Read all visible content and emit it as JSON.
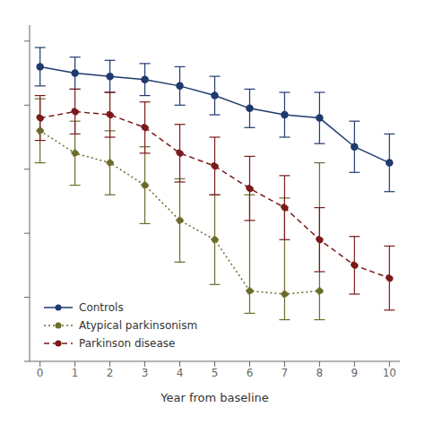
{
  "chart_data": {
    "type": "line",
    "xlabel": "Year from baseline",
    "x": [
      0,
      1,
      2,
      3,
      4,
      5,
      6,
      7,
      8,
      9,
      10
    ],
    "series": [
      {
        "name": "Controls",
        "color": "#1f3a6e",
        "line_style": "solid",
        "marker": "circle",
        "values": [
          0.92,
          0.9,
          0.89,
          0.88,
          0.86,
          0.83,
          0.79,
          0.77,
          0.76,
          0.67,
          0.62
        ],
        "errors_lo": [
          0.06,
          0.05,
          0.05,
          0.05,
          0.06,
          0.06,
          0.06,
          0.07,
          0.08,
          0.08,
          0.09
        ],
        "errors_hi": [
          0.06,
          0.05,
          0.05,
          0.05,
          0.06,
          0.06,
          0.06,
          0.07,
          0.08,
          0.08,
          0.09
        ]
      },
      {
        "name": "Atypical parkinsonism",
        "color": "#6b6b2a",
        "line_style": "dotted",
        "marker": "circle",
        "values": [
          0.72,
          0.65,
          0.62,
          0.55,
          0.44,
          0.38,
          0.22,
          0.21,
          0.22,
          null,
          null
        ],
        "errors_lo": [
          0.1,
          0.1,
          0.1,
          0.12,
          0.13,
          0.14,
          0.07,
          0.08,
          0.09,
          null,
          null
        ],
        "errors_hi": [
          0.1,
          0.1,
          0.1,
          0.12,
          0.13,
          0.14,
          0.3,
          0.3,
          0.4,
          null,
          null
        ]
      },
      {
        "name": "Parkinson disease",
        "color": "#7a1a1a",
        "line_style": "dashed",
        "marker": "circle",
        "values": [
          0.76,
          0.78,
          0.77,
          0.73,
          0.65,
          0.61,
          0.54,
          0.48,
          0.38,
          0.3,
          0.26
        ],
        "errors_lo": [
          0.07,
          0.07,
          0.07,
          0.08,
          0.09,
          0.09,
          0.1,
          0.1,
          0.1,
          0.09,
          0.1
        ],
        "errors_hi": [
          0.07,
          0.07,
          0.07,
          0.08,
          0.09,
          0.09,
          0.1,
          0.1,
          0.1,
          0.09,
          0.1
        ]
      }
    ],
    "xlim": [
      -0.3,
      10.3
    ],
    "ylim": [
      0.0,
      1.05
    ],
    "xticks": [
      0,
      1,
      2,
      3,
      4,
      5,
      6,
      7,
      8,
      9,
      10
    ],
    "yticks": [
      0.0,
      0.2,
      0.4,
      0.6,
      0.8,
      1.0
    ],
    "tick_labels": "x",
    "grid": false,
    "legend": "lower left"
  }
}
